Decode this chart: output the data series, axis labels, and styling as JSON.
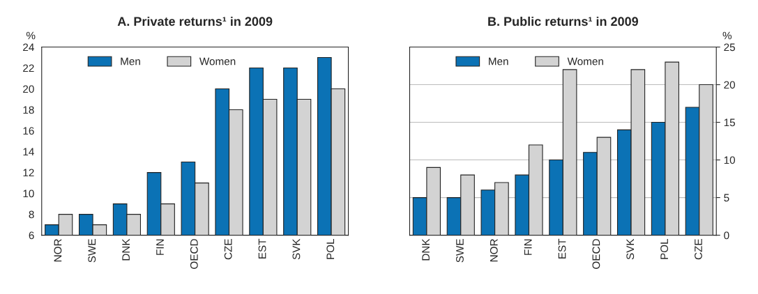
{
  "chart_data": [
    {
      "type": "bar",
      "title": "A. Private returns¹ in 2009",
      "ylabel": "%",
      "categories": [
        "NOR",
        "SWE",
        "DNK",
        "FIN",
        "OECD",
        "CZE",
        "EST",
        "SVK",
        "POL"
      ],
      "series": [
        {
          "name": "Men",
          "color": "#0b72b5",
          "values": [
            7,
            8,
            9,
            12,
            13,
            20,
            22,
            22,
            23
          ]
        },
        {
          "name": "Women",
          "color": "#d3d3d3",
          "values": [
            8,
            7,
            8,
            9,
            11,
            18,
            19,
            19,
            20
          ]
        }
      ],
      "ylim": [
        6,
        24
      ],
      "yticks": [
        6,
        8,
        10,
        12,
        14,
        16,
        18,
        20,
        22,
        24
      ],
      "grid": false,
      "legend": "top left"
    },
    {
      "type": "bar",
      "title": "B. Public returns¹ in 2009",
      "y2label": "%",
      "categories": [
        "DNK",
        "SWE",
        "NOR",
        "FIN",
        "EST",
        "OECD",
        "SVK",
        "POL",
        "CZE"
      ],
      "series": [
        {
          "name": "Men",
          "color": "#0b72b5",
          "values": [
            5,
            5,
            6,
            8,
            10,
            11,
            14,
            15,
            17
          ],
          "axis": "y2"
        },
        {
          "name": "Women",
          "color": "#d3d3d3",
          "values": [
            9,
            8,
            7,
            12,
            22,
            13,
            22,
            23,
            20
          ],
          "axis": "y2"
        }
      ],
      "y2lim": [
        0,
        25
      ],
      "y2ticks": [
        0,
        5,
        10,
        15,
        20,
        25
      ],
      "grid": "y",
      "legend": "top left"
    }
  ]
}
